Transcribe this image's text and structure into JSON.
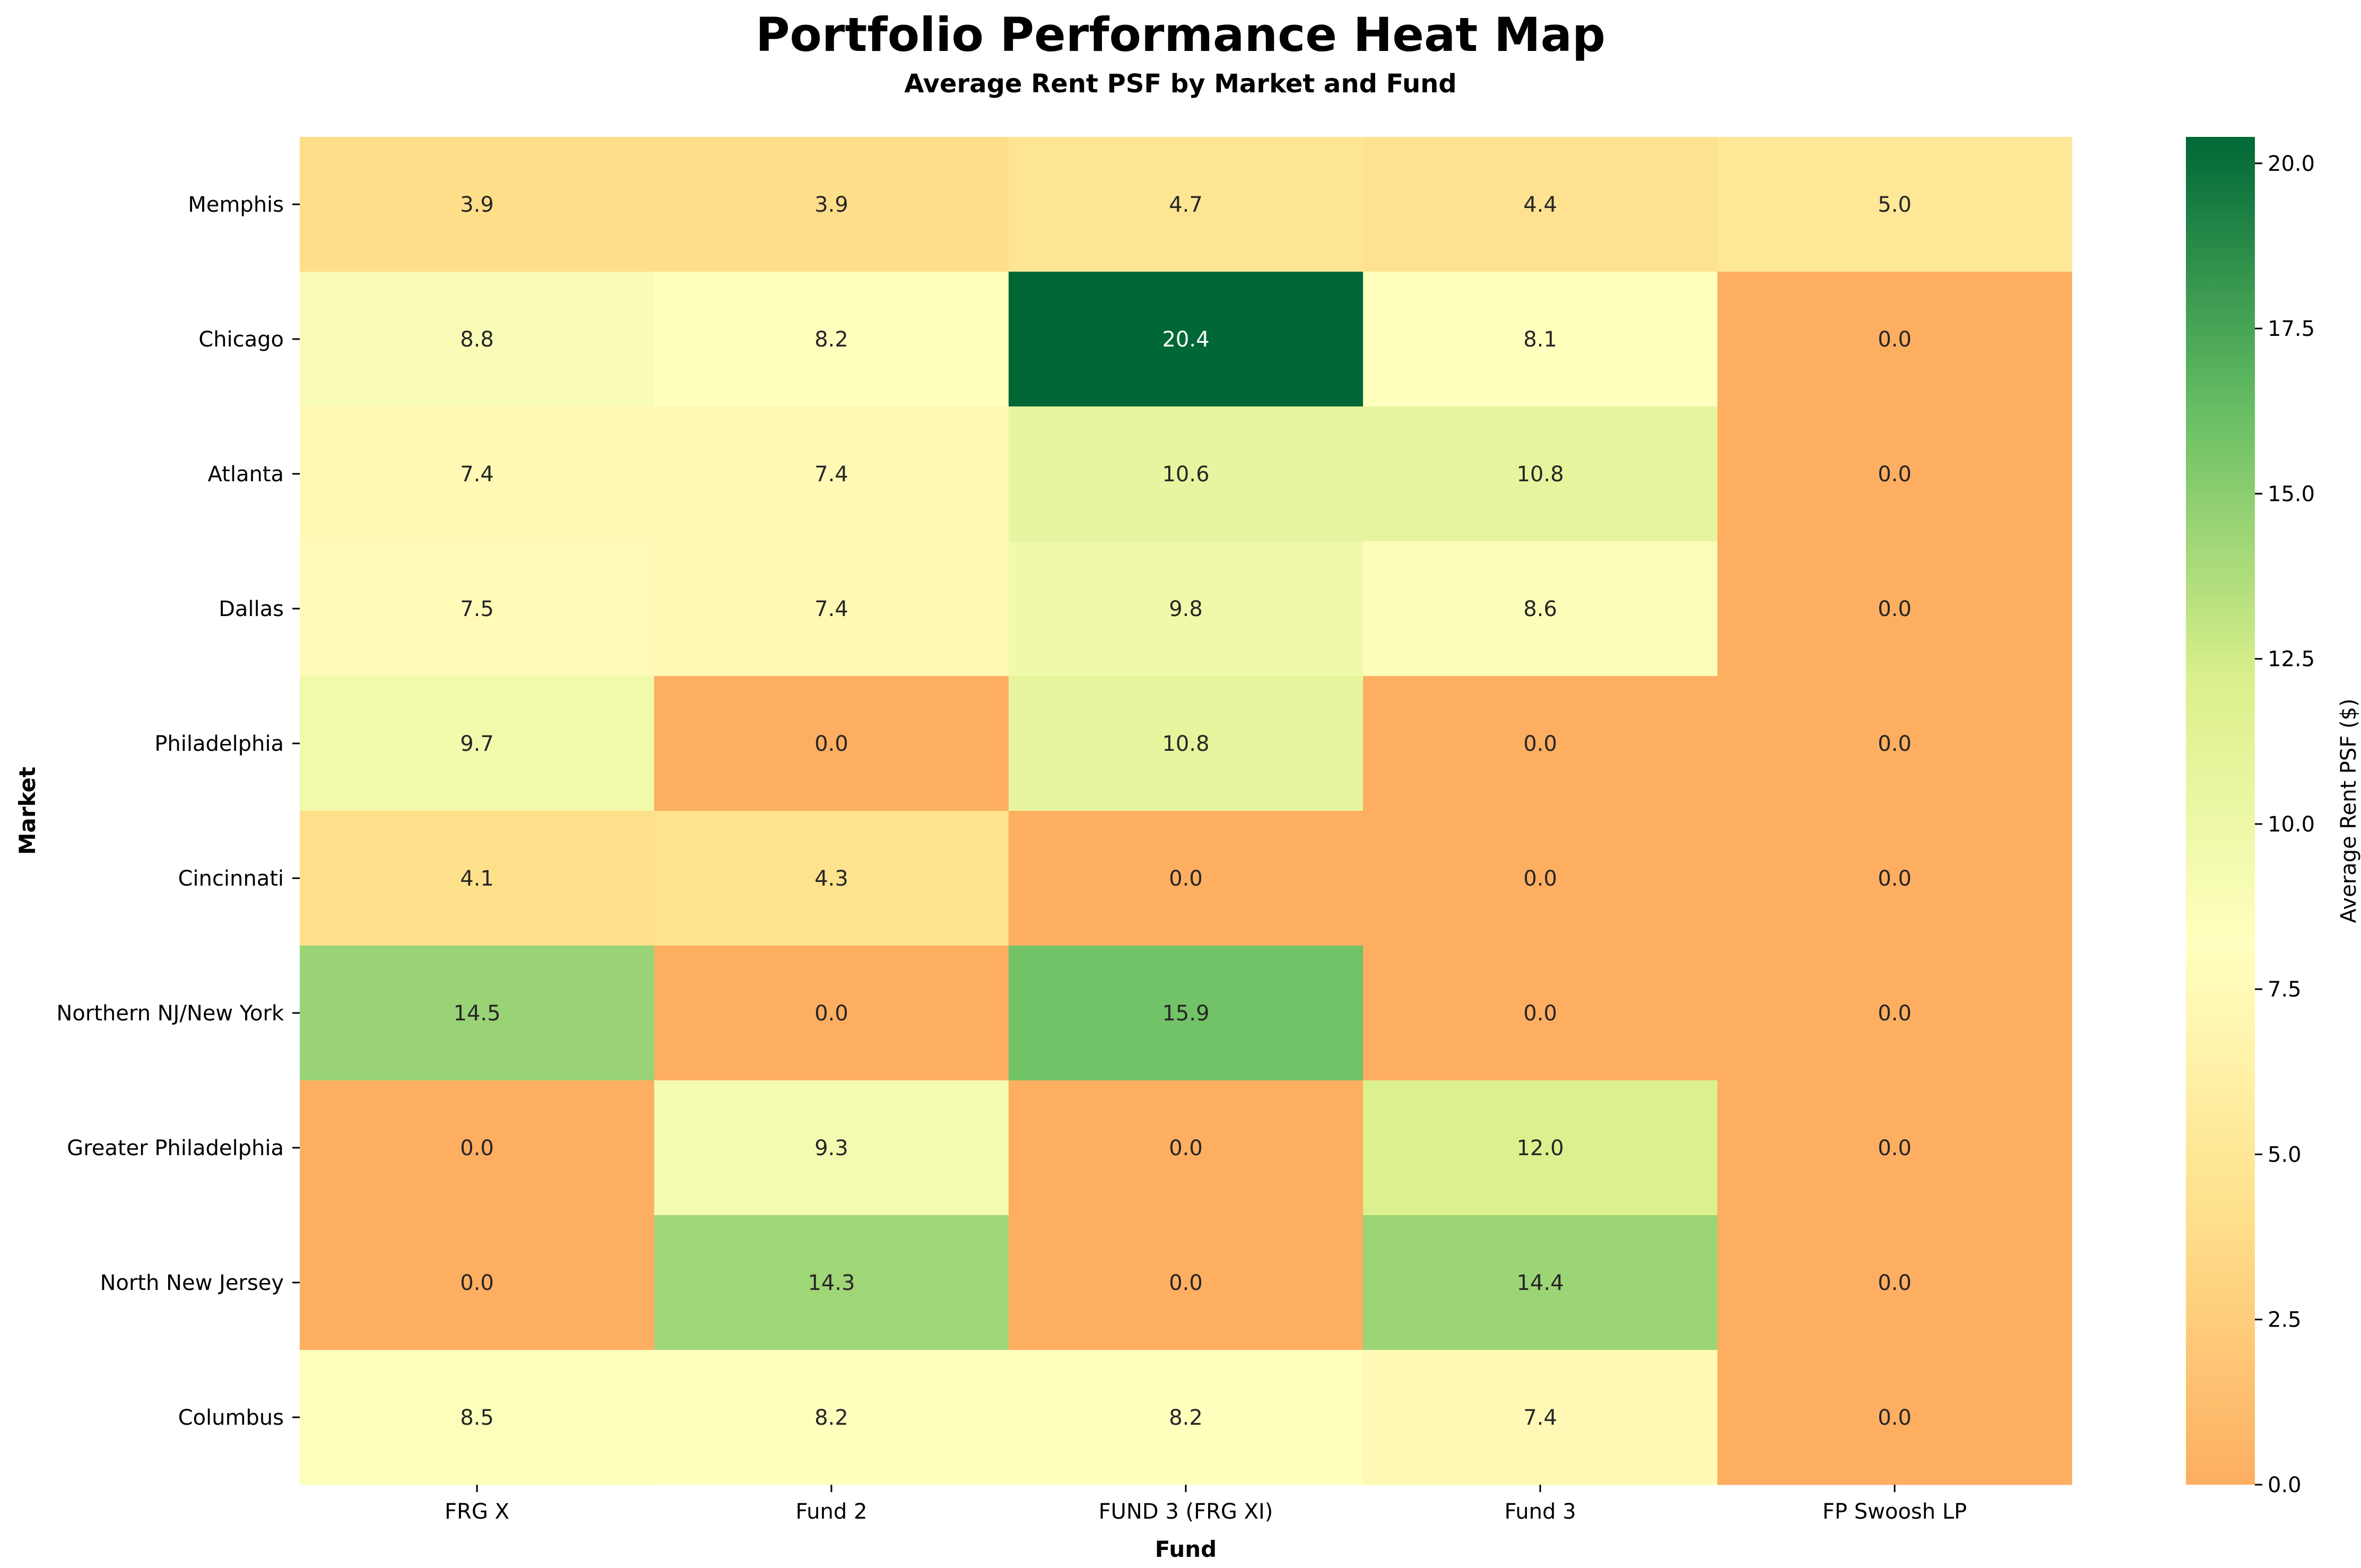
{
  "chart_data": {
    "type": "heatmap",
    "title": "Portfolio Performance Heat Map",
    "subtitle": "Average Rent PSF by Market and Fund",
    "xlabel": "Fund",
    "ylabel": "Market",
    "colorbar_label": "Average Rent PSF ($)",
    "colormap": "RdYlGn",
    "vmin": 0,
    "vmax": 20.4,
    "colorbar_ticks": [
      "0.0",
      "2.5",
      "5.0",
      "7.5",
      "10.0",
      "12.5",
      "15.0",
      "17.5",
      "20.0"
    ],
    "columns": [
      "FRG X",
      "Fund 2",
      "FUND 3 (FRG XI)",
      "Fund 3",
      "FP Swoosh LP"
    ],
    "rows": [
      "Memphis",
      "Chicago",
      "Atlanta",
      "Dallas",
      "Philadelphia",
      "Cincinnati",
      "Northern NJ/New York",
      "Greater Philadelphia",
      "North New Jersey",
      "Columbus"
    ],
    "values": [
      [
        3.9,
        3.9,
        4.7,
        4.4,
        5.0
      ],
      [
        8.8,
        8.2,
        20.4,
        8.1,
        0.0
      ],
      [
        7.4,
        7.4,
        10.6,
        10.8,
        0.0
      ],
      [
        7.5,
        7.4,
        9.8,
        8.6,
        0.0
      ],
      [
        9.7,
        0.0,
        10.8,
        0.0,
        0.0
      ],
      [
        4.1,
        4.3,
        0.0,
        0.0,
        0.0
      ],
      [
        14.5,
        0.0,
        15.9,
        0.0,
        0.0
      ],
      [
        0.0,
        9.3,
        0.0,
        12.0,
        0.0
      ],
      [
        0.0,
        14.3,
        0.0,
        14.4,
        0.0
      ],
      [
        8.5,
        8.2,
        8.2,
        7.4,
        0.0
      ]
    ]
  }
}
